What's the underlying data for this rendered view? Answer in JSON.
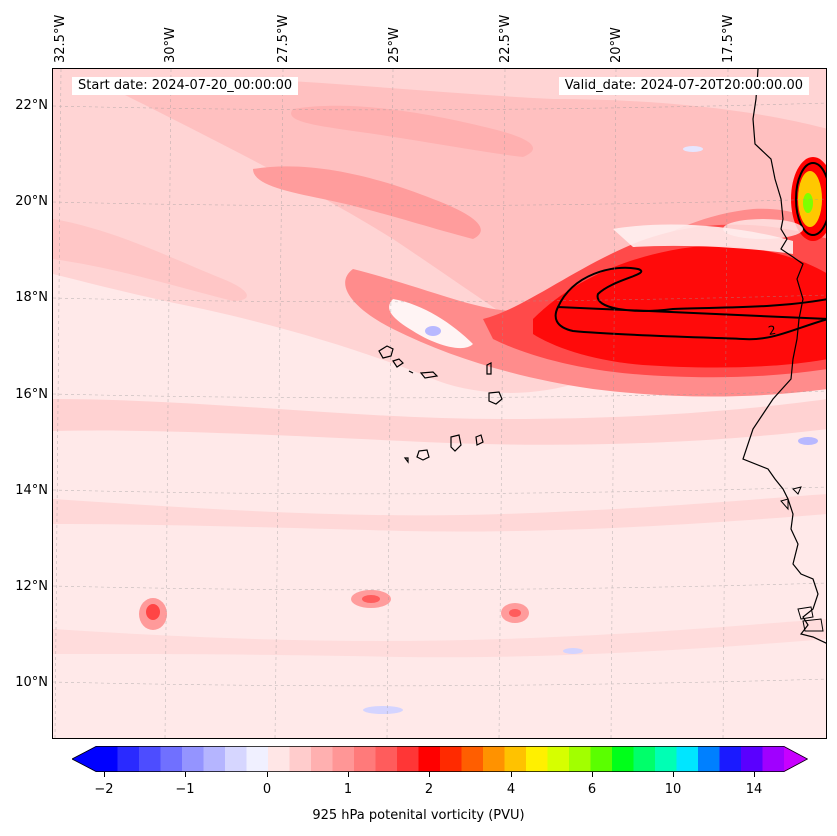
{
  "annotations": {
    "start_date": "Start date: 2024-07-20_00:00:00",
    "valid_date": "Valid_date: 2024-07-20T20:00:00.00"
  },
  "lat_labels": [
    "22°N",
    "20°N",
    "18°N",
    "16°N",
    "14°N",
    "12°N",
    "10°N"
  ],
  "lon_labels": [
    "32.5°W",
    "30°W",
    "27.5°W",
    "25°W",
    "22.5°W",
    "20°W",
    "17.5°W"
  ],
  "contour_label": "2",
  "colorbar": {
    "label": "925 hPa potenital vorticity (PVU)",
    "ticks": [
      "−2",
      "−1",
      "0",
      "1",
      "2",
      "4",
      "6",
      "10",
      "14"
    ],
    "colors": [
      "#0000ff",
      "#2a2aff",
      "#4d4dff",
      "#7070ff",
      "#9494ff",
      "#b5b5ff",
      "#d6d6ff",
      "#f0f0ff",
      "#ffe6e6",
      "#ffcccc",
      "#ffb0b0",
      "#ff9696",
      "#ff7a7a",
      "#ff5c5c",
      "#ff3636",
      "#ff0000",
      "#ff2a00",
      "#ff5e00",
      "#ff9200",
      "#ffc200",
      "#fff000",
      "#d6ff00",
      "#a2ff00",
      "#5aff00",
      "#00ff1a",
      "#00ff6a",
      "#00ffb4",
      "#00e6ff",
      "#0080ff",
      "#1a1aff",
      "#5a00ff",
      "#a000ff"
    ],
    "under_color": "#0000ff",
    "over_color": "#c800ff"
  },
  "colors": {
    "background_field": "#ffe9e9",
    "light_pink": "#ffd0d0",
    "mid_pink": "#ffaaaa",
    "strong_red": "#ff3030",
    "bright_red": "#ff0000",
    "yellow": "#ffe800",
    "green": "#7fff00",
    "light_blue": "#e6e6ff",
    "blue": "#b8b8ff"
  }
}
